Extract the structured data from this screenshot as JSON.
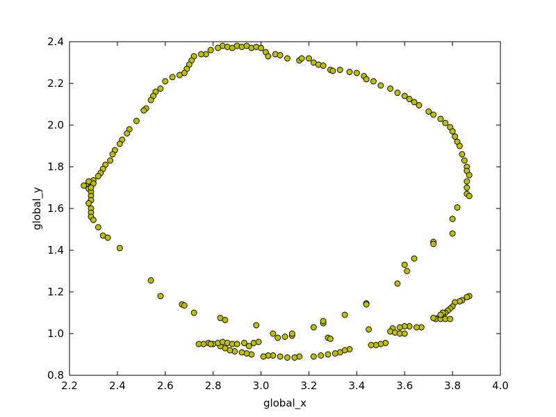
{
  "chart_data": {
    "type": "scatter",
    "title": "",
    "xlabel": "global_x",
    "ylabel": "global_y",
    "xlim": [
      2.2,
      4.0
    ],
    "ylim": [
      0.8,
      2.4
    ],
    "xticks": [
      "2.2",
      "2.4",
      "2.6",
      "2.8",
      "3.0",
      "3.2",
      "3.4",
      "3.6",
      "3.8",
      "4.0"
    ],
    "yticks": [
      "0.8",
      "1.0",
      "1.2",
      "1.4",
      "1.6",
      "1.8",
      "2.0",
      "2.2",
      "2.4"
    ],
    "grid": false,
    "legend": "none",
    "marker_color": "#bfbf00",
    "marker_edge": "#000000",
    "series": [
      {
        "points": [
          [
            2.84,
            2.38
          ],
          [
            2.86,
            2.375
          ],
          [
            2.88,
            2.37
          ],
          [
            2.9,
            2.38
          ],
          [
            2.92,
            2.375
          ],
          [
            2.94,
            2.38
          ],
          [
            2.96,
            2.37
          ],
          [
            2.98,
            2.375
          ],
          [
            3.0,
            2.37
          ],
          [
            3.02,
            2.35
          ],
          [
            3.03,
            2.33
          ],
          [
            3.06,
            2.34
          ],
          [
            3.08,
            2.335
          ],
          [
            3.11,
            2.32
          ],
          [
            3.16,
            2.31
          ],
          [
            3.17,
            2.32
          ],
          [
            3.2,
            2.32
          ],
          [
            3.22,
            2.3
          ],
          [
            3.24,
            2.29
          ],
          [
            3.26,
            2.285
          ],
          [
            3.29,
            2.265
          ],
          [
            3.3,
            2.26
          ],
          [
            3.33,
            2.265
          ],
          [
            3.37,
            2.255
          ],
          [
            3.4,
            2.25
          ],
          [
            3.43,
            2.235
          ],
          [
            3.44,
            2.22
          ],
          [
            3.47,
            2.21
          ],
          [
            3.5,
            2.19
          ],
          [
            3.54,
            2.175
          ],
          [
            3.57,
            2.155
          ],
          [
            3.6,
            2.14
          ],
          [
            3.62,
            2.125
          ],
          [
            3.64,
            2.11
          ],
          [
            3.66,
            2.095
          ],
          [
            3.7,
            2.065
          ],
          [
            3.72,
            2.05
          ],
          [
            3.75,
            2.03
          ],
          [
            3.77,
            2.01
          ],
          [
            3.79,
            1.99
          ],
          [
            3.8,
            1.97
          ],
          [
            3.81,
            1.945
          ],
          [
            3.82,
            1.92
          ],
          [
            3.83,
            1.9
          ],
          [
            3.84,
            1.86
          ],
          [
            3.85,
            1.83
          ],
          [
            3.86,
            1.8
          ],
          [
            3.86,
            1.78
          ],
          [
            3.87,
            1.76
          ],
          [
            3.86,
            1.73
          ],
          [
            3.86,
            1.7
          ],
          [
            3.86,
            1.67
          ],
          [
            3.87,
            1.66
          ],
          [
            2.82,
            2.37
          ],
          [
            2.79,
            2.36
          ],
          [
            2.77,
            2.34
          ],
          [
            2.75,
            2.34
          ],
          [
            2.72,
            2.33
          ],
          [
            2.71,
            2.31
          ],
          [
            2.7,
            2.29
          ],
          [
            2.69,
            2.27
          ],
          [
            2.68,
            2.25
          ],
          [
            2.66,
            2.24
          ],
          [
            2.63,
            2.23
          ],
          [
            2.6,
            2.21
          ],
          [
            2.58,
            2.175
          ],
          [
            2.56,
            2.16
          ],
          [
            2.55,
            2.14
          ],
          [
            2.54,
            2.12
          ],
          [
            2.52,
            2.08
          ],
          [
            2.51,
            2.07
          ],
          [
            2.48,
            2.02
          ],
          [
            2.45,
            1.98
          ],
          [
            2.44,
            1.96
          ],
          [
            2.42,
            1.93
          ],
          [
            2.41,
            1.91
          ],
          [
            2.39,
            1.88
          ],
          [
            2.38,
            1.86
          ],
          [
            2.37,
            1.83
          ],
          [
            2.35,
            1.81
          ],
          [
            2.34,
            1.79
          ],
          [
            2.33,
            1.77
          ],
          [
            2.32,
            1.755
          ],
          [
            2.3,
            1.735
          ],
          [
            2.28,
            1.725
          ],
          [
            2.27,
            1.71
          ],
          [
            2.28,
            1.695
          ],
          [
            2.29,
            1.68
          ],
          [
            2.29,
            1.66
          ],
          [
            2.29,
            1.64
          ],
          [
            2.28,
            1.625
          ],
          [
            2.29,
            1.6
          ],
          [
            2.29,
            1.58
          ],
          [
            2.29,
            1.56
          ],
          [
            2.3,
            1.545
          ],
          [
            2.32,
            1.51
          ],
          [
            2.34,
            1.47
          ],
          [
            2.36,
            1.46
          ],
          [
            2.41,
            1.41
          ],
          [
            2.3,
            1.72
          ],
          [
            2.29,
            1.7
          ],
          [
            2.28,
            1.73
          ],
          [
            2.26,
            1.71
          ],
          [
            3.82,
            1.605
          ],
          [
            3.8,
            1.55
          ],
          [
            3.8,
            1.48
          ],
          [
            3.72,
            1.44
          ],
          [
            3.72,
            1.43
          ],
          [
            3.64,
            1.36
          ],
          [
            3.6,
            1.33
          ],
          [
            3.61,
            1.3
          ],
          [
            3.57,
            1.24
          ],
          [
            3.87,
            1.18
          ],
          [
            3.86,
            1.175
          ],
          [
            3.84,
            1.16
          ],
          [
            3.83,
            1.155
          ],
          [
            3.81,
            1.15
          ],
          [
            3.8,
            1.13
          ],
          [
            3.79,
            1.12
          ],
          [
            3.78,
            1.11
          ],
          [
            3.77,
            1.1
          ],
          [
            3.76,
            1.09
          ],
          [
            3.75,
            1.08
          ],
          [
            3.74,
            1.075
          ],
          [
            3.73,
            1.07
          ],
          [
            3.72,
            1.075
          ],
          [
            3.75,
            1.07
          ],
          [
            3.77,
            1.07
          ],
          [
            3.79,
            1.07
          ],
          [
            3.76,
            1.1
          ],
          [
            3.75,
            1.09
          ],
          [
            3.67,
            1.03
          ],
          [
            3.65,
            1.03
          ],
          [
            3.62,
            1.035
          ],
          [
            3.6,
            1.035
          ],
          [
            3.58,
            1.03
          ],
          [
            3.55,
            1.025
          ],
          [
            3.54,
            1.01
          ],
          [
            3.56,
            1.005
          ],
          [
            3.58,
            1.0
          ],
          [
            3.6,
            1.0
          ],
          [
            3.52,
            0.955
          ],
          [
            3.5,
            0.95
          ],
          [
            3.48,
            0.945
          ],
          [
            3.46,
            0.945
          ],
          [
            3.45,
            1.02
          ],
          [
            3.37,
            0.925
          ],
          [
            3.35,
            0.92
          ],
          [
            3.33,
            0.91
          ],
          [
            3.31,
            0.905
          ],
          [
            3.28,
            0.9
          ],
          [
            3.25,
            0.895
          ],
          [
            3.22,
            0.89
          ],
          [
            3.16,
            0.89
          ],
          [
            3.14,
            0.885
          ],
          [
            3.11,
            0.885
          ],
          [
            3.08,
            0.89
          ],
          [
            3.05,
            0.895
          ],
          [
            3.03,
            0.895
          ],
          [
            3.01,
            0.89
          ],
          [
            2.96,
            0.9
          ],
          [
            2.94,
            0.905
          ],
          [
            2.92,
            0.91
          ],
          [
            2.89,
            0.915
          ],
          [
            2.87,
            0.92
          ],
          [
            2.85,
            0.93
          ],
          [
            2.83,
            0.94
          ],
          [
            2.8,
            0.95
          ],
          [
            2.78,
            0.955
          ],
          [
            2.76,
            0.95
          ],
          [
            2.74,
            0.95
          ],
          [
            2.79,
            0.95
          ],
          [
            2.82,
            0.955
          ],
          [
            2.84,
            0.96
          ],
          [
            2.86,
            0.955
          ],
          [
            2.88,
            0.95
          ],
          [
            2.9,
            0.95
          ],
          [
            2.93,
            0.955
          ],
          [
            2.95,
            0.94
          ],
          [
            2.97,
            0.955
          ],
          [
            2.99,
            0.96
          ],
          [
            2.98,
            1.04
          ],
          [
            3.05,
            1.0
          ],
          [
            3.07,
            0.98
          ],
          [
            3.1,
            0.985
          ],
          [
            3.13,
            0.99
          ],
          [
            3.13,
            1.0
          ],
          [
            3.22,
            1.03
          ],
          [
            3.26,
            1.05
          ],
          [
            3.26,
            1.06
          ],
          [
            3.28,
            0.98
          ],
          [
            3.29,
            0.975
          ],
          [
            3.35,
            1.09
          ],
          [
            3.44,
            1.145
          ],
          [
            3.44,
            1.14
          ],
          [
            2.83,
            1.075
          ],
          [
            2.85,
            1.065
          ],
          [
            2.72,
            1.1
          ],
          [
            2.67,
            1.14
          ],
          [
            2.68,
            1.135
          ],
          [
            2.58,
            1.18
          ],
          [
            2.54,
            1.255
          ]
        ]
      }
    ]
  }
}
